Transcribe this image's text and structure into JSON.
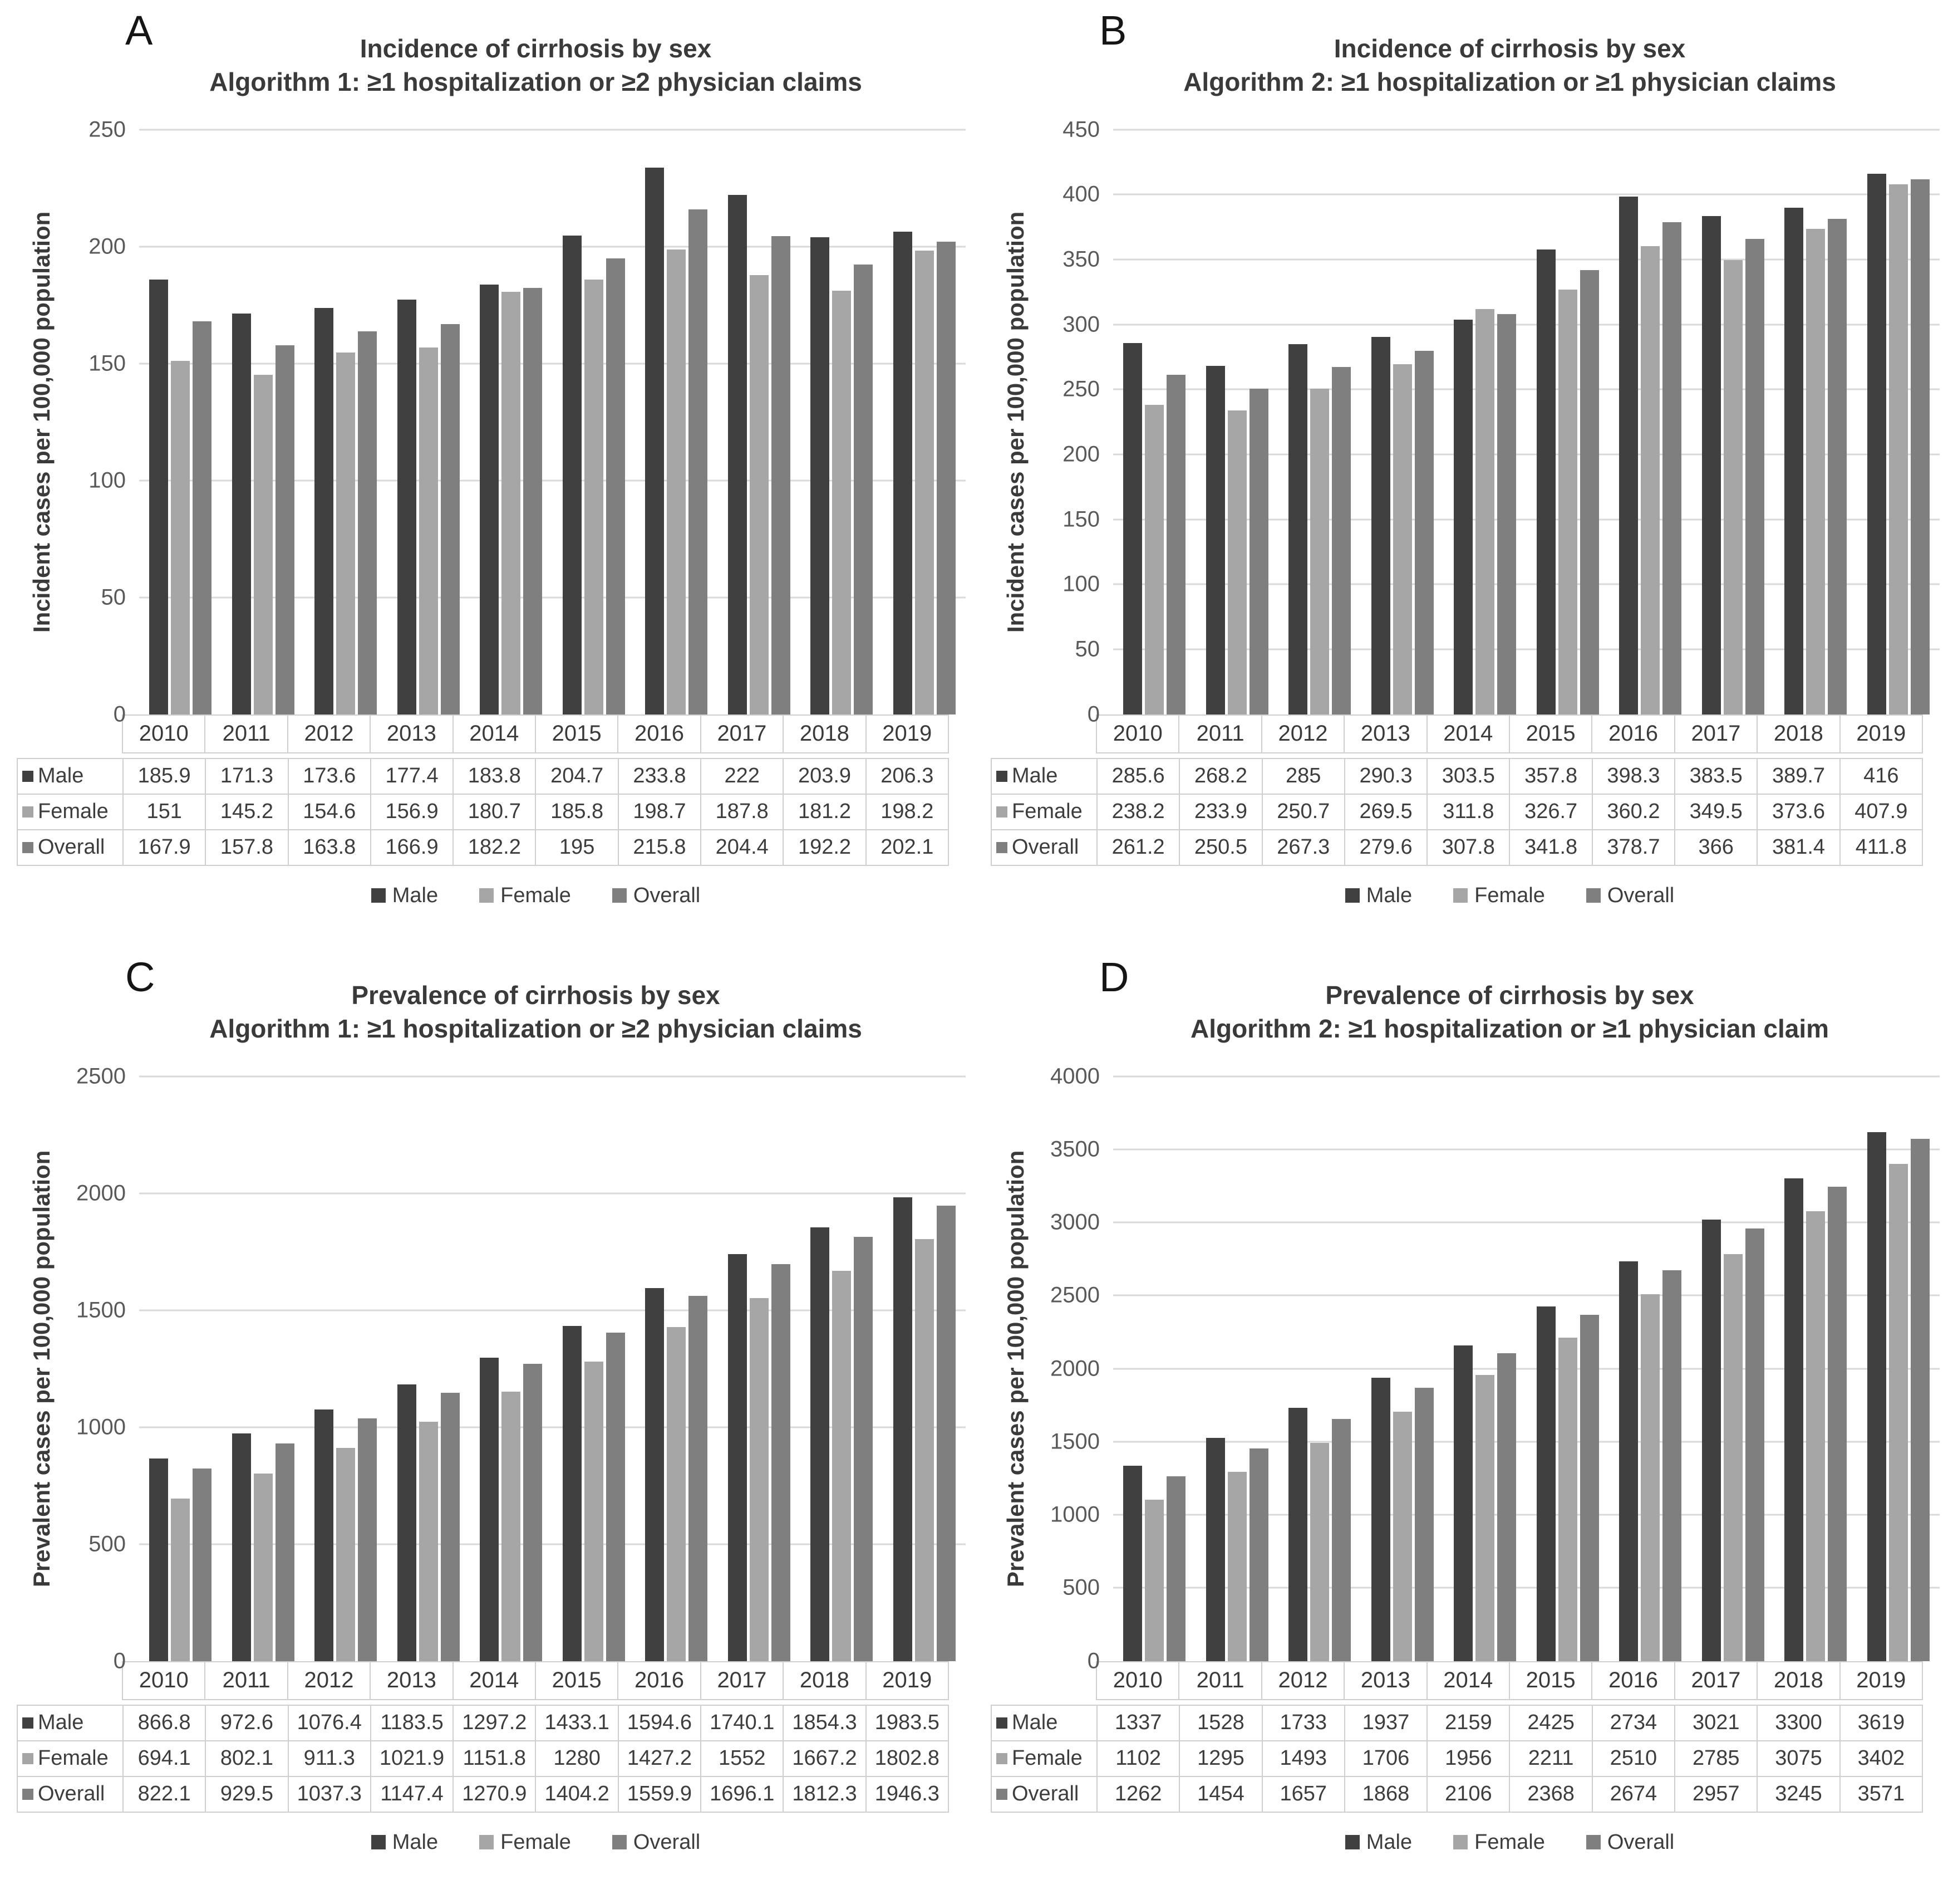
{
  "figure": {
    "legend": {
      "male": "Male",
      "female": "Female",
      "overall": "Overall"
    },
    "colors": {
      "male": "#404040",
      "female": "#a6a6a6",
      "overall": "#7f7f7f"
    },
    "gridline_color": "#d9d9d9",
    "background": "#ffffff"
  },
  "chart_data": [
    {
      "panel_letter": "A",
      "type": "bar",
      "title_line1": "Incidence of cirrhosis by sex",
      "title_line2": "Algorithm 1: ≥1 hospitalization or ≥2 physician claims",
      "ylabel": "Incident cases per 100,000 population",
      "xlabel": "",
      "ylim": [
        0,
        250
      ],
      "ytick_step": 50,
      "grid": true,
      "legend_position": "bottom",
      "categories": [
        "2010",
        "2011",
        "2012",
        "2013",
        "2014",
        "2015",
        "2016",
        "2017",
        "2018",
        "2019"
      ],
      "series": [
        {
          "key": "male",
          "name": "Male",
          "values": [
            185.9,
            171.3,
            173.6,
            177.4,
            183.8,
            204.7,
            233.8,
            222,
            203.9,
            206.3
          ]
        },
        {
          "key": "female",
          "name": "Female",
          "values": [
            151,
            145.2,
            154.6,
            156.9,
            180.7,
            185.8,
            198.7,
            187.8,
            181.2,
            198.2
          ]
        },
        {
          "key": "overall",
          "name": "Overall",
          "values": [
            167.9,
            157.8,
            163.8,
            166.9,
            182.2,
            195,
            215.8,
            204.4,
            192.2,
            202.1
          ]
        }
      ]
    },
    {
      "panel_letter": "B",
      "type": "bar",
      "title_line1": "Incidence of cirrhosis by sex",
      "title_line2": "Algorithm 2: ≥1 hospitalization or ≥1 physician claims",
      "ylabel": "Incident cases per 100,000 population",
      "xlabel": "",
      "ylim": [
        0,
        450
      ],
      "ytick_step": 50,
      "grid": true,
      "legend_position": "bottom",
      "categories": [
        "2010",
        "2011",
        "2012",
        "2013",
        "2014",
        "2015",
        "2016",
        "2017",
        "2018",
        "2019"
      ],
      "series": [
        {
          "key": "male",
          "name": "Male",
          "values": [
            285.6,
            268.2,
            285,
            290.3,
            303.5,
            357.8,
            398.3,
            383.5,
            389.7,
            416
          ]
        },
        {
          "key": "female",
          "name": "Female",
          "values": [
            238.2,
            233.9,
            250.7,
            269.5,
            311.8,
            326.7,
            360.2,
            349.5,
            373.6,
            407.9
          ]
        },
        {
          "key": "overall",
          "name": "Overall",
          "values": [
            261.2,
            250.5,
            267.3,
            279.6,
            307.8,
            341.8,
            378.7,
            366,
            381.4,
            411.8
          ]
        }
      ]
    },
    {
      "panel_letter": "C",
      "type": "bar",
      "title_line1": "Prevalence of cirrhosis by sex",
      "title_line2": "Algorithm 1: ≥1 hospitalization or ≥2 physician claims",
      "ylabel": "Prevalent cases per 100,000 population",
      "xlabel": "",
      "ylim": [
        0,
        2500
      ],
      "ytick_step": 500,
      "grid": true,
      "legend_position": "bottom",
      "categories": [
        "2010",
        "2011",
        "2012",
        "2013",
        "2014",
        "2015",
        "2016",
        "2017",
        "2018",
        "2019"
      ],
      "series": [
        {
          "key": "male",
          "name": "Male",
          "values": [
            866.8,
            972.6,
            1076.4,
            1183.5,
            1297.2,
            1433.1,
            1594.6,
            1740.1,
            1854.3,
            1983.5
          ]
        },
        {
          "key": "female",
          "name": "Female",
          "values": [
            694.1,
            802.1,
            911.3,
            1021.9,
            1151.8,
            1280,
            1427.2,
            1552,
            1667.2,
            1802.8
          ]
        },
        {
          "key": "overall",
          "name": "Overall",
          "values": [
            822.1,
            929.5,
            1037.3,
            1147.4,
            1270.9,
            1404.2,
            1559.9,
            1696.1,
            1812.3,
            1946.3
          ]
        }
      ]
    },
    {
      "panel_letter": "D",
      "type": "bar",
      "title_line1": "Prevalence of cirrhosis by sex",
      "title_line2": "Algorithm 2: ≥1 hospitalization or ≥1 physician claim",
      "ylabel": "Prevalent cases per 100,000 population",
      "xlabel": "",
      "ylim": [
        0,
        4000
      ],
      "ytick_step": 500,
      "grid": true,
      "legend_position": "bottom",
      "categories": [
        "2010",
        "2011",
        "2012",
        "2013",
        "2014",
        "2015",
        "2016",
        "2017",
        "2018",
        "2019"
      ],
      "series": [
        {
          "key": "male",
          "name": "Male",
          "values": [
            1337,
            1528,
            1733,
            1937,
            2159,
            2425,
            2734,
            3021,
            3300,
            3619
          ]
        },
        {
          "key": "female",
          "name": "Female",
          "values": [
            1102,
            1295,
            1493,
            1706,
            1956,
            2211,
            2510,
            2785,
            3075,
            3402
          ]
        },
        {
          "key": "overall",
          "name": "Overall",
          "values": [
            1262,
            1454,
            1657,
            1868,
            2106,
            2368,
            2674,
            2957,
            3245,
            3571
          ]
        }
      ]
    }
  ]
}
